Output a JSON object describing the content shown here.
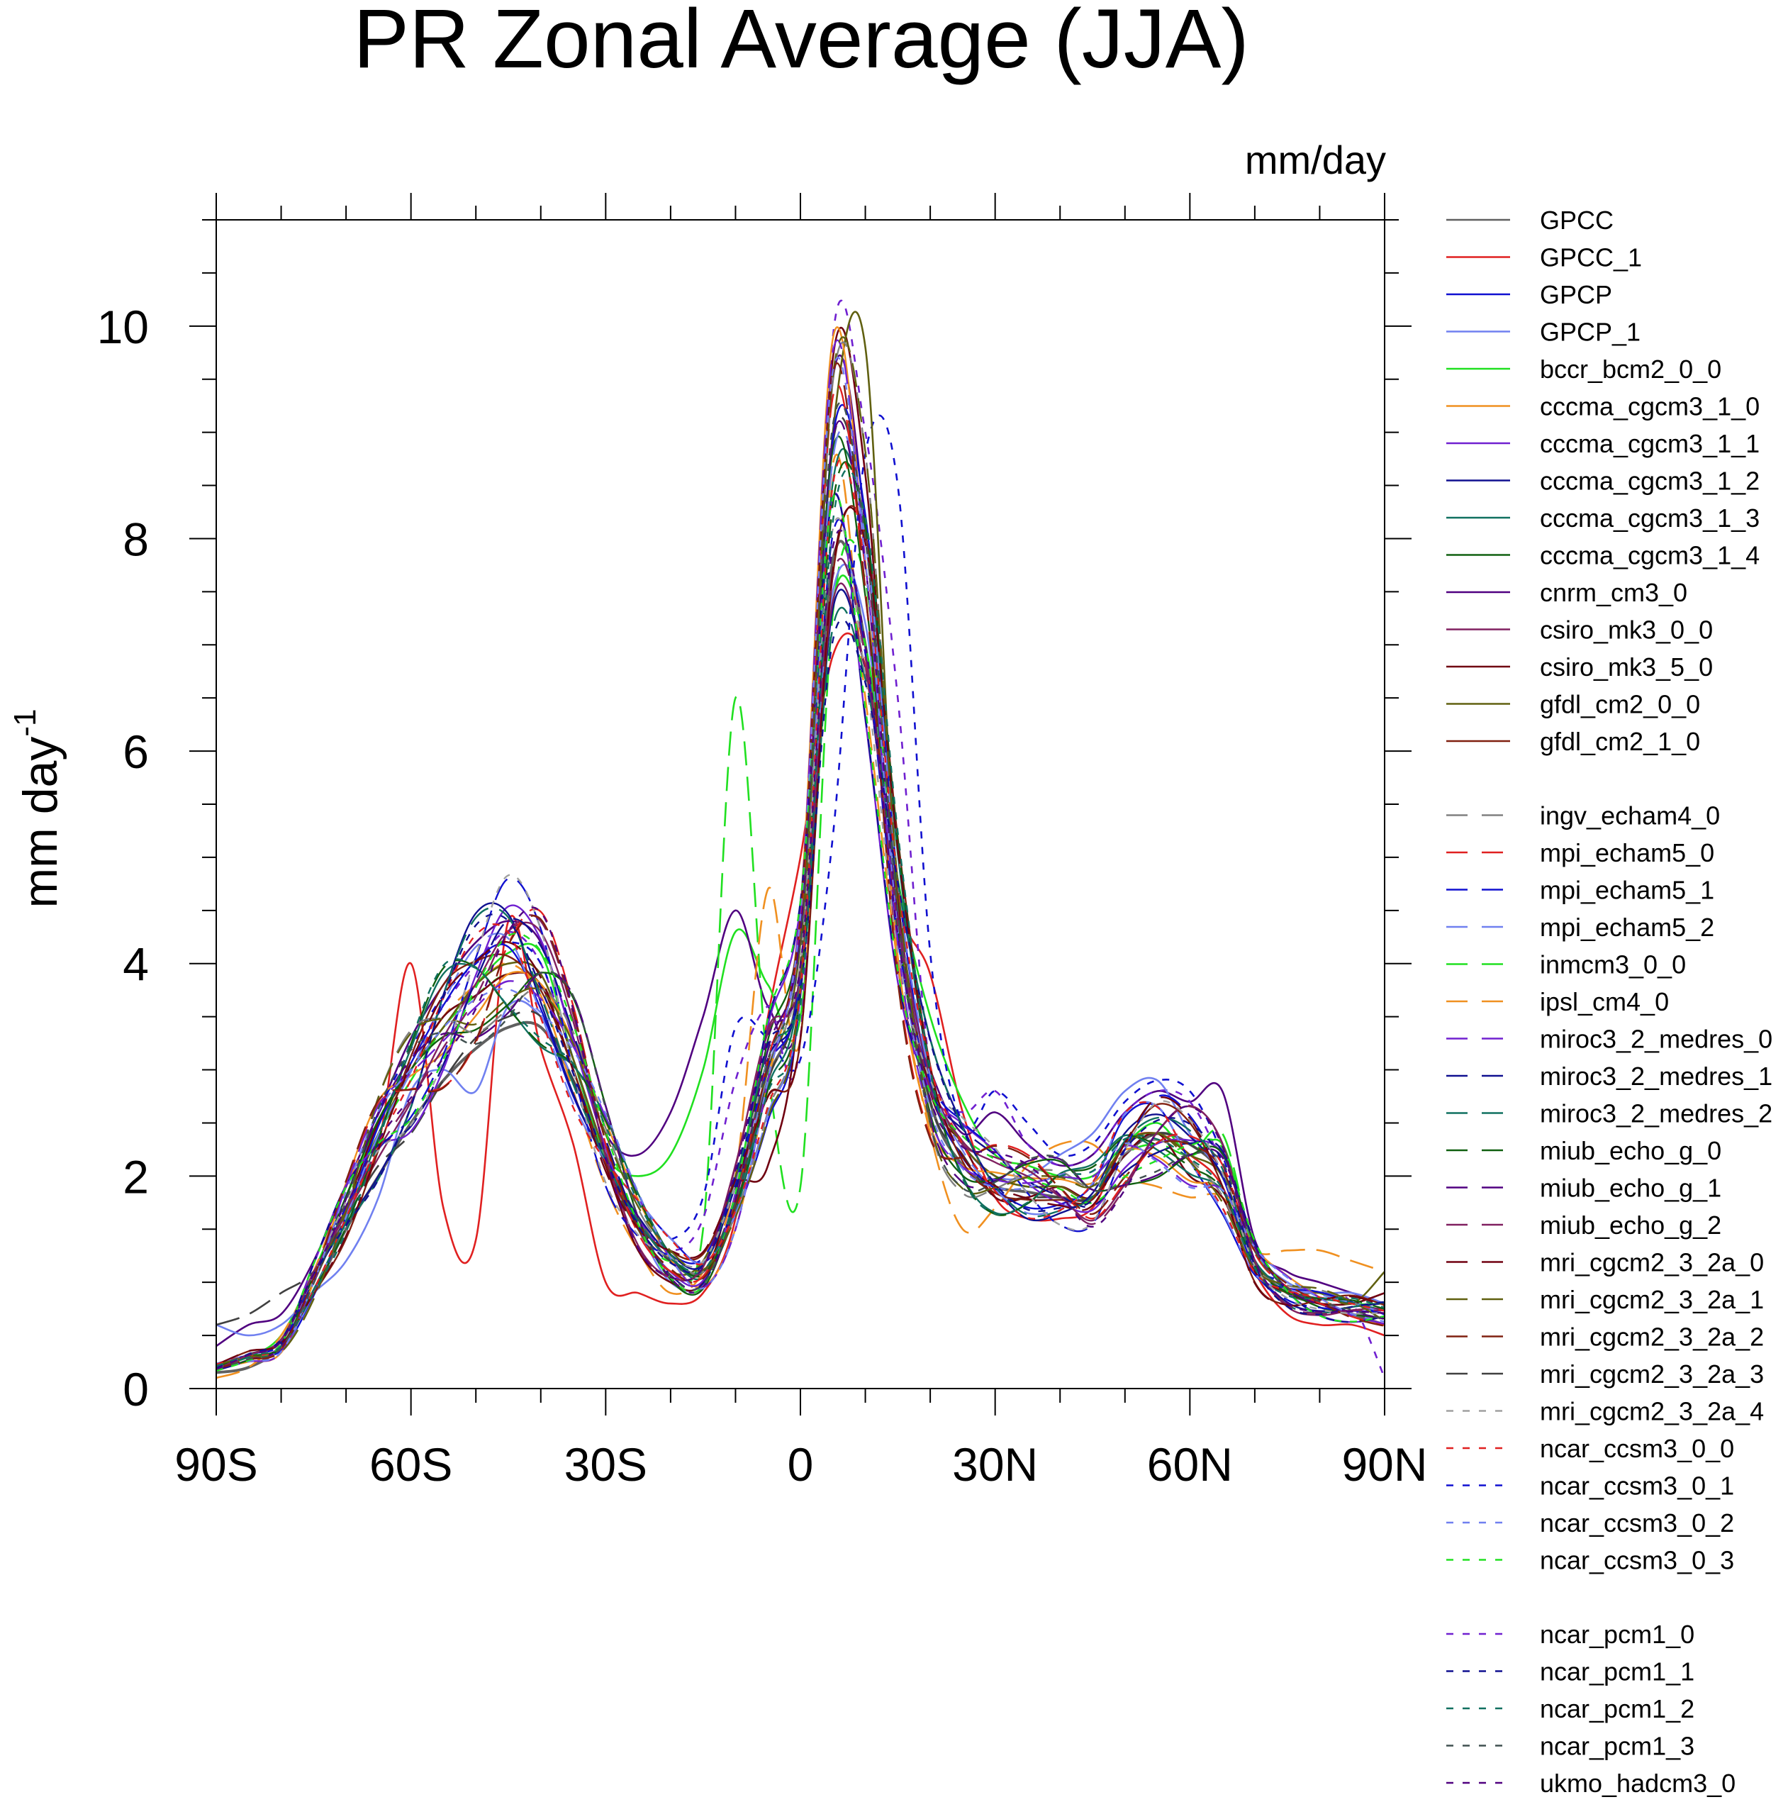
{
  "chart_data": {
    "type": "line",
    "title": "PR Zonal Average (JJA)",
    "units": "mm/day",
    "ylabel": "mm day",
    "ylabel_superscript": "-1",
    "xlim": [
      -90,
      90
    ],
    "ylim": [
      0,
      11
    ],
    "yticks": [
      0,
      2,
      4,
      6,
      8,
      10
    ],
    "ytick_labels": [
      "0",
      "2",
      "4",
      "6",
      "8",
      "10"
    ],
    "xticks": [
      -90,
      -60,
      -30,
      0,
      30,
      60,
      90
    ],
    "xtick_labels": [
      "90S",
      "60S",
      "30S",
      "0",
      "30N",
      "60N",
      "90N"
    ],
    "legend_position": "right",
    "legend_groups": [
      [
        {
          "name": "GPCC",
          "color": "#606060",
          "dash": "solid"
        },
        {
          "name": "GPCC_1",
          "color": "#e02020",
          "dash": "solid"
        },
        {
          "name": "GPCP",
          "color": "#1010d0",
          "dash": "solid"
        },
        {
          "name": "GPCP_1",
          "color": "#7080f0",
          "dash": "solid"
        },
        {
          "name": "bccr_bcm2_0_0",
          "color": "#20e020",
          "dash": "solid"
        },
        {
          "name": "cccma_cgcm3_1_0",
          "color": "#f09020",
          "dash": "solid"
        },
        {
          "name": "cccma_cgcm3_1_1",
          "color": "#7020d0",
          "dash": "solid"
        },
        {
          "name": "cccma_cgcm3_1_2",
          "color": "#101090",
          "dash": "solid"
        },
        {
          "name": "cccma_cgcm3_1_3",
          "color": "#107060",
          "dash": "solid"
        },
        {
          "name": "cccma_cgcm3_1_4",
          "color": "#106010",
          "dash": "solid"
        },
        {
          "name": "cnrm_cm3_0",
          "color": "#500080",
          "dash": "solid"
        },
        {
          "name": "csiro_mk3_0_0",
          "color": "#802060",
          "dash": "solid"
        },
        {
          "name": "csiro_mk3_5_0",
          "color": "#700010",
          "dash": "solid"
        },
        {
          "name": "gfdl_cm2_0_0",
          "color": "#606010",
          "dash": "solid"
        },
        {
          "name": "gfdl_cm2_1_0",
          "color": "#802010",
          "dash": "solid"
        }
      ],
      [
        {
          "name": "ingv_echam4_0",
          "color": "#808080",
          "dash": "long"
        },
        {
          "name": "mpi_echam5_0",
          "color": "#e02020",
          "dash": "long"
        },
        {
          "name": "mpi_echam5_1",
          "color": "#1010d0",
          "dash": "long"
        },
        {
          "name": "mpi_echam5_2",
          "color": "#7080f0",
          "dash": "long"
        },
        {
          "name": "inmcm3_0_0",
          "color": "#20e020",
          "dash": "long"
        },
        {
          "name": "ipsl_cm4_0",
          "color": "#f09020",
          "dash": "long"
        },
        {
          "name": "miroc3_2_medres_0",
          "color": "#7020d0",
          "dash": "long"
        },
        {
          "name": "miroc3_2_medres_1",
          "color": "#101090",
          "dash": "long"
        },
        {
          "name": "miroc3_2_medres_2",
          "color": "#107060",
          "dash": "long"
        },
        {
          "name": "miub_echo_g_0",
          "color": "#106010",
          "dash": "long"
        },
        {
          "name": "miub_echo_g_1",
          "color": "#500080",
          "dash": "long"
        },
        {
          "name": "miub_echo_g_2",
          "color": "#802060",
          "dash": "long"
        },
        {
          "name": "mri_cgcm2_3_2a_0",
          "color": "#700010",
          "dash": "long"
        },
        {
          "name": "mri_cgcm2_3_2a_1",
          "color": "#606010",
          "dash": "long"
        },
        {
          "name": "mri_cgcm2_3_2a_2",
          "color": "#802010",
          "dash": "long"
        },
        {
          "name": "mri_cgcm2_3_2a_3",
          "color": "#404040",
          "dash": "long"
        },
        {
          "name": "mri_cgcm2_3_2a_4",
          "color": "#a0a0a0",
          "dash": "short"
        },
        {
          "name": "ncar_ccsm3_0_0",
          "color": "#e02020",
          "dash": "short"
        },
        {
          "name": "ncar_ccsm3_0_1",
          "color": "#1010d0",
          "dash": "short"
        },
        {
          "name": "ncar_ccsm3_0_2",
          "color": "#7080f0",
          "dash": "short"
        },
        {
          "name": "ncar_ccsm3_0_3",
          "color": "#20e020",
          "dash": "short"
        }
      ],
      [
        {
          "name": "ncar_pcm1_0",
          "color": "#7020d0",
          "dash": "short"
        },
        {
          "name": "ncar_pcm1_1",
          "color": "#101090",
          "dash": "short"
        },
        {
          "name": "ncar_pcm1_2",
          "color": "#107060",
          "dash": "short"
        },
        {
          "name": "ncar_pcm1_3",
          "color": "#405050",
          "dash": "short"
        },
        {
          "name": "ukmo_hadcm3_0",
          "color": "#500080",
          "dash": "short"
        }
      ]
    ],
    "x": [
      -90,
      -85,
      -80,
      -75,
      -70,
      -65,
      -60,
      -55,
      -50,
      -45,
      -40,
      -35,
      -30,
      -25,
      -20,
      -15,
      -10,
      -5,
      0,
      5,
      10,
      15,
      20,
      25,
      30,
      35,
      40,
      45,
      50,
      55,
      60,
      65,
      70,
      75,
      80,
      85,
      90
    ],
    "base_profile": [
      0.2,
      0.3,
      0.4,
      1.0,
      1.7,
      2.4,
      2.9,
      3.4,
      3.8,
      4.1,
      3.9,
      3.2,
      2.3,
      1.6,
      1.2,
      1.1,
      1.8,
      3.0,
      4.0,
      8.5,
      7.5,
      4.5,
      2.8,
      2.2,
      2.0,
      1.9,
      1.85,
      1.8,
      2.2,
      2.4,
      2.3,
      2.0,
      1.2,
      0.9,
      0.8,
      0.75,
      0.7
    ],
    "series": [
      {
        "name": "GPCC",
        "values": [
          0.15,
          0.2,
          0.4,
          0.9,
          1.5,
          2.0,
          2.5,
          2.9,
          3.2,
          3.4,
          3.4,
          2.9,
          2.2,
          1.6,
          1.2,
          1.1,
          1.7,
          2.9,
          3.9,
          7.8,
          7.0,
          4.3,
          2.7,
          2.1,
          1.9,
          1.85,
          1.8,
          1.8,
          2.2,
          2.4,
          2.3,
          2.0,
          1.2,
          0.9,
          0.8,
          0.7,
          0.6
        ]
      },
      {
        "name": "GPCC_1",
        "values": [
          0.2,
          0.3,
          0.4,
          1.0,
          1.7,
          2.3,
          4.0,
          1.7,
          1.4,
          4.4,
          3.2,
          2.3,
          1.0,
          0.9,
          0.8,
          0.9,
          1.6,
          3.5,
          5.0,
          6.9,
          6.8,
          4.6,
          3.9,
          2.6,
          1.8,
          1.6,
          1.6,
          1.7,
          2.3,
          2.4,
          2.2,
          1.9,
          1.1,
          0.7,
          0.6,
          0.6,
          0.5
        ]
      },
      {
        "name": "bccr_bcm2_0_0",
        "values": [
          0.2,
          0.3,
          0.5,
          1.1,
          1.8,
          2.5,
          3.0,
          3.4,
          3.8,
          4.1,
          4.1,
          3.1,
          2.2,
          2.0,
          2.2,
          3.0,
          4.3,
          3.8,
          3.5,
          7.4,
          7.0,
          4.8,
          3.5,
          2.7,
          2.2,
          2.1,
          2.0,
          2.0,
          2.3,
          2.5,
          2.2,
          2.3,
          1.3,
          1.0,
          0.9,
          0.8,
          0.8
        ]
      },
      {
        "name": "cnrm_cm3_0",
        "values": [
          0.4,
          0.6,
          0.7,
          1.2,
          1.9,
          2.6,
          3.3,
          3.8,
          4.2,
          4.4,
          4.2,
          3.3,
          2.4,
          2.2,
          2.6,
          3.5,
          4.5,
          3.6,
          3.7,
          9.5,
          8.1,
          4.0,
          3.0,
          2.4,
          2.6,
          2.3,
          2.1,
          2.2,
          2.6,
          2.8,
          2.7,
          2.8,
          1.4,
          1.1,
          1.0,
          0.9,
          0.8
        ]
      },
      {
        "name": "inmcm3_0_0",
        "values": [
          0.2,
          0.3,
          0.4,
          1.0,
          1.7,
          2.4,
          2.9,
          3.4,
          3.7,
          3.9,
          3.8,
          3.0,
          2.1,
          1.5,
          1.2,
          1.5,
          6.5,
          3.0,
          1.9,
          7.3,
          7.6,
          4.4,
          2.9,
          2.3,
          2.0,
          1.9,
          1.9,
          1.8,
          2.2,
          2.3,
          2.2,
          2.4,
          1.3,
          1.0,
          0.9,
          0.8,
          0.7
        ]
      },
      {
        "name": "ipsl_cm4_0",
        "values": [
          0.1,
          0.2,
          0.5,
          1.1,
          1.9,
          2.5,
          3.0,
          3.5,
          3.8,
          4.0,
          3.7,
          2.8,
          1.9,
          1.3,
          0.9,
          1.1,
          2.0,
          4.7,
          3.3,
          8.7,
          6.5,
          4.0,
          2.4,
          1.5,
          1.7,
          2.1,
          2.3,
          2.3,
          2.0,
          1.9,
          1.8,
          1.8,
          1.3,
          1.3,
          1.3,
          1.2,
          1.1
        ]
      },
      {
        "name": "ncar_pcm1_0",
        "values": [
          0.2,
          0.3,
          0.4,
          1.0,
          1.8,
          2.5,
          3.1,
          3.6,
          4.0,
          4.3,
          4.0,
          3.1,
          2.2,
          1.6,
          1.3,
          1.6,
          2.9,
          3.6,
          3.3,
          9.9,
          9.0,
          6.5,
          3.0,
          2.6,
          2.8,
          2.3,
          2.1,
          2.2,
          2.6,
          2.8,
          2.7,
          2.1,
          1.2,
          0.9,
          0.9,
          0.8,
          0.1
        ]
      },
      {
        "name": "ncar_ccsm3_0_1",
        "values": [
          0.2,
          0.3,
          0.4,
          1.0,
          1.8,
          2.6,
          3.2,
          3.7,
          4.0,
          4.2,
          4.0,
          3.1,
          2.2,
          1.5,
          1.4,
          1.8,
          3.4,
          3.3,
          3.1,
          5.2,
          8.8,
          8.5,
          4.1,
          2.5,
          2.8,
          2.5,
          2.2,
          2.3,
          2.7,
          2.9,
          2.8,
          2.2,
          1.2,
          1.0,
          0.9,
          0.8,
          0.7
        ]
      },
      {
        "name": "GPCP_1",
        "values": [
          0.6,
          0.5,
          0.6,
          0.9,
          1.2,
          1.8,
          2.8,
          3.0,
          2.8,
          3.6,
          3.5,
          2.9,
          2.1,
          1.5,
          1.0,
          1.0,
          1.8,
          3.0,
          4.2,
          7.5,
          7.2,
          4.5,
          2.9,
          2.3,
          2.0,
          2.0,
          2.2,
          2.4,
          2.8,
          2.9,
          2.4,
          2.0,
          1.3,
          1.0,
          0.9,
          0.9,
          0.8
        ]
      },
      {
        "name": "mri_cgcm2_3_2a_3",
        "values": [
          0.6,
          0.7,
          0.9,
          1.1,
          1.6,
          2.1,
          2.4,
          2.9,
          3.3,
          3.5,
          3.5,
          2.9,
          2.1,
          1.5,
          1.2,
          1.1,
          1.8,
          2.9,
          4.0,
          8.9,
          8.0,
          4.6,
          2.7,
          2.2,
          1.8,
          1.8,
          1.8,
          1.8,
          2.2,
          2.4,
          2.3,
          2.0,
          1.2,
          0.9,
          0.8,
          0.8,
          0.7
        ]
      },
      {
        "name": "csiro_mk3_5_0",
        "values": [
          0.2,
          0.3,
          0.4,
          1.0,
          1.7,
          2.5,
          3.0,
          3.5,
          3.7,
          3.9,
          3.8,
          3.0,
          2.1,
          1.3,
          1.0,
          1.0,
          1.9,
          2.1,
          3.8,
          9.7,
          8.6,
          4.6,
          2.8,
          2.3,
          1.8,
          1.8,
          1.9,
          1.8,
          2.2,
          2.4,
          2.0,
          1.8,
          1.1,
          0.9,
          0.8,
          0.8,
          0.9
        ]
      },
      {
        "name": "gfdl_cm2_0_0",
        "values": [
          0.2,
          0.3,
          0.4,
          1.0,
          1.7,
          2.4,
          3.0,
          3.4,
          3.8,
          4.0,
          3.9,
          3.1,
          2.2,
          1.5,
          1.1,
          1.2,
          2.0,
          3.0,
          4.2,
          9.0,
          9.8,
          4.5,
          2.9,
          2.3,
          2.0,
          1.9,
          1.9,
          1.8,
          2.3,
          2.4,
          2.2,
          2.0,
          1.2,
          0.9,
          0.9,
          0.8,
          1.1
        ]
      }
    ]
  }
}
